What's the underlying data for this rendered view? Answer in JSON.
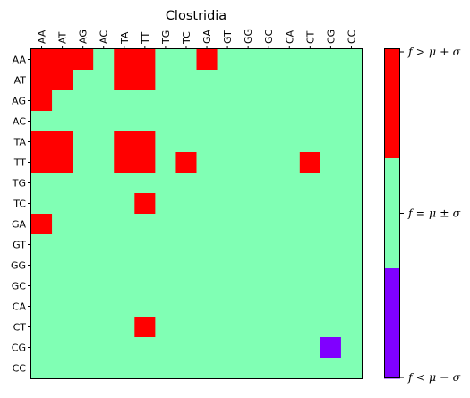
{
  "chart_data": {
    "type": "heatmap",
    "title": "Clostridia",
    "x_categories": [
      "AA",
      "AT",
      "AG",
      "AC",
      "TA",
      "TT",
      "TG",
      "TC",
      "GA",
      "GT",
      "GG",
      "GC",
      "CA",
      "CT",
      "CG",
      "CC"
    ],
    "y_categories": [
      "AA",
      "AT",
      "AG",
      "AC",
      "TA",
      "TT",
      "TG",
      "TC",
      "GA",
      "GT",
      "GG",
      "GC",
      "CA",
      "CT",
      "CG",
      "CC"
    ],
    "value_levels": [
      -1,
      0,
      1
    ],
    "matrix": [
      [
        1,
        1,
        1,
        0,
        1,
        1,
        0,
        0,
        1,
        0,
        0,
        0,
        0,
        0,
        0,
        0
      ],
      [
        1,
        1,
        0,
        0,
        1,
        1,
        0,
        0,
        0,
        0,
        0,
        0,
        0,
        0,
        0,
        0
      ],
      [
        1,
        0,
        0,
        0,
        0,
        0,
        0,
        0,
        0,
        0,
        0,
        0,
        0,
        0,
        0,
        0
      ],
      [
        0,
        0,
        0,
        0,
        0,
        0,
        0,
        0,
        0,
        0,
        0,
        0,
        0,
        0,
        0,
        0
      ],
      [
        1,
        1,
        0,
        0,
        1,
        1,
        0,
        0,
        0,
        0,
        0,
        0,
        0,
        0,
        0,
        0
      ],
      [
        1,
        1,
        0,
        0,
        1,
        1,
        0,
        1,
        0,
        0,
        0,
        0,
        0,
        1,
        0,
        0
      ],
      [
        0,
        0,
        0,
        0,
        0,
        0,
        0,
        0,
        0,
        0,
        0,
        0,
        0,
        0,
        0,
        0
      ],
      [
        0,
        0,
        0,
        0,
        0,
        1,
        0,
        0,
        0,
        0,
        0,
        0,
        0,
        0,
        0,
        0
      ],
      [
        1,
        0,
        0,
        0,
        0,
        0,
        0,
        0,
        0,
        0,
        0,
        0,
        0,
        0,
        0,
        0
      ],
      [
        0,
        0,
        0,
        0,
        0,
        0,
        0,
        0,
        0,
        0,
        0,
        0,
        0,
        0,
        0,
        0
      ],
      [
        0,
        0,
        0,
        0,
        0,
        0,
        0,
        0,
        0,
        0,
        0,
        0,
        0,
        0,
        0,
        0
      ],
      [
        0,
        0,
        0,
        0,
        0,
        0,
        0,
        0,
        0,
        0,
        0,
        0,
        0,
        0,
        0,
        0
      ],
      [
        0,
        0,
        0,
        0,
        0,
        0,
        0,
        0,
        0,
        0,
        0,
        0,
        0,
        0,
        0,
        0
      ],
      [
        0,
        0,
        0,
        0,
        0,
        1,
        0,
        0,
        0,
        0,
        0,
        0,
        0,
        0,
        0,
        0
      ],
      [
        0,
        0,
        0,
        0,
        0,
        0,
        0,
        0,
        0,
        0,
        0,
        0,
        0,
        0,
        -1,
        0
      ],
      [
        0,
        0,
        0,
        0,
        0,
        0,
        0,
        0,
        0,
        0,
        0,
        0,
        0,
        0,
        0,
        0
      ]
    ],
    "colorbar": {
      "levels": [
        {
          "value": 1,
          "label": "f > μ + σ",
          "color": "#ff0000"
        },
        {
          "value": 0,
          "label": "f = μ ± σ",
          "color": "#80ffb4"
        },
        {
          "value": -1,
          "label": "f < μ − σ",
          "color": "#8000ff"
        }
      ]
    },
    "x_tick_position": "top",
    "grid": false
  }
}
